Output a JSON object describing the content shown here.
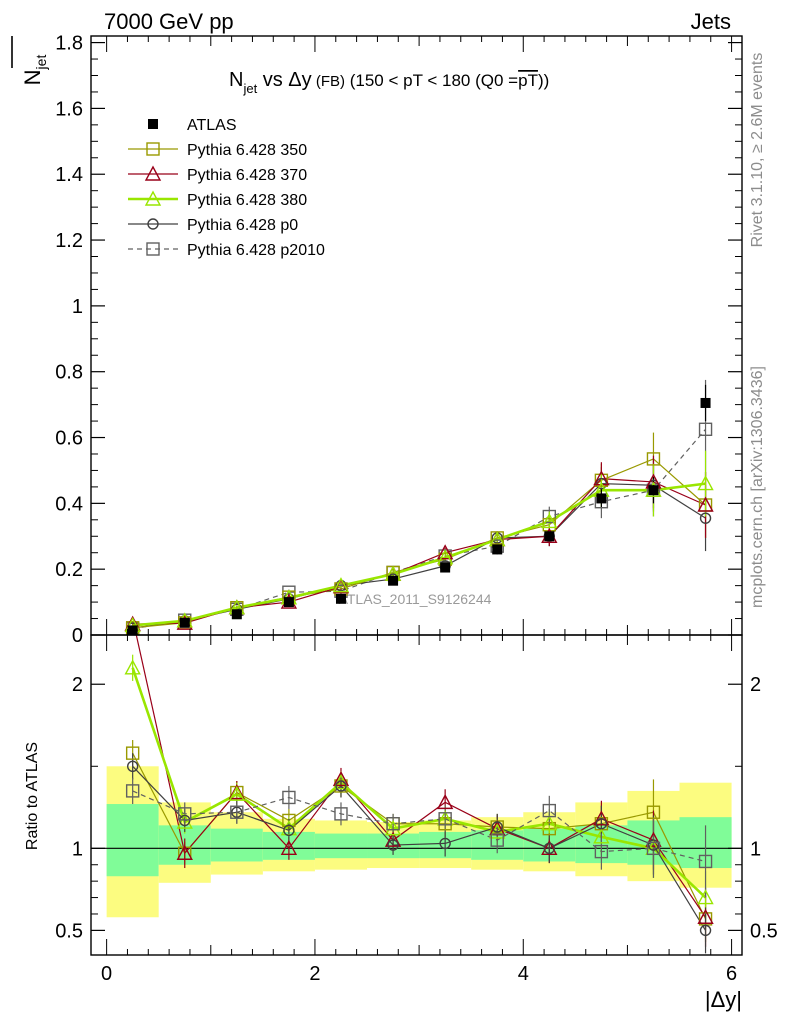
{
  "header": {
    "left": "7000 GeV pp",
    "right": "Jets",
    "side_top": "Rivet 3.1.10, ≥ 2.6M events",
    "side_bottom": "mcplots.cern.ch [arXiv:1306.3436]"
  },
  "plot": {
    "title_main": "N",
    "title_sub": "jet",
    "title_rest": " vs Δy",
    "title_fb": " (FB)",
    "title_tail": " (150 < pT < 180 (Q0 =",
    "title_pt": "pT",
    "title_close": "))",
    "ylabel_main": "N",
    "ylabel_sub": "jet",
    "watermark": "ATLAS_2011_S9126244",
    "ratio_ylabel": "Ratio to ATLAS",
    "xlabel": "|Δy|"
  },
  "colors": {
    "atlas": "#000000",
    "p350": "#999900",
    "p370": "#990019",
    "p380": "#99e600",
    "p0": "#404040",
    "p2010": "#606060",
    "band_yellow": "#fcfc80",
    "band_green": "#80fc98"
  },
  "chart_data": {
    "type": "scatter",
    "x": [
      0.25,
      0.75,
      1.25,
      1.75,
      2.25,
      2.75,
      3.25,
      3.75,
      4.25,
      4.75,
      5.25,
      5.75
    ],
    "xlim": [
      -0.15,
      6.1
    ],
    "xticks": [
      "0",
      "2",
      "4",
      "6"
    ],
    "main_ylim": [
      0,
      1.82
    ],
    "main_yticks": [
      "0",
      "0.2",
      "0.4",
      "0.6",
      "0.8",
      "1",
      "1.2",
      "1.4",
      "1.6",
      "1.8"
    ],
    "ratio_ylim": [
      0.35,
      2.3
    ],
    "ratio_yticks": [
      "0.5",
      "1",
      "2"
    ],
    "series": [
      {
        "name": "ATLAS",
        "key": "atlas",
        "marker": "filled-square",
        "line": "none",
        "values": [
          0.014,
          0.037,
          0.063,
          0.1,
          0.11,
          0.165,
          0.205,
          0.26,
          0.3,
          0.415,
          0.44,
          0.705
        ],
        "errors": [
          0.004,
          0.004,
          0.006,
          0.008,
          0.008,
          0.01,
          0.012,
          0.015,
          0.02,
          0.03,
          0.04,
          0.055
        ]
      },
      {
        "name": "Pythia 6.428 350",
        "key": "p350",
        "marker": "open-square",
        "line": "solid",
        "values": [
          0.022,
          0.037,
          0.083,
          0.115,
          0.14,
          0.19,
          0.23,
          0.295,
          0.335,
          0.47,
          0.535,
          0.395
        ],
        "errors": [
          0.003,
          0.003,
          0.006,
          0.008,
          0.009,
          0.012,
          0.015,
          0.02,
          0.03,
          0.05,
          0.08,
          0.1
        ]
      },
      {
        "name": "Pythia 6.428 370",
        "key": "p370",
        "marker": "open-triangle",
        "line": "solid",
        "values": [
          0.033,
          0.036,
          0.083,
          0.1,
          0.147,
          0.185,
          0.25,
          0.29,
          0.3,
          0.475,
          0.465,
          0.395
        ],
        "errors": [
          0.003,
          0.003,
          0.006,
          0.008,
          0.009,
          0.012,
          0.015,
          0.02,
          0.03,
          0.05,
          0.08,
          0.1
        ]
      },
      {
        "name": "Pythia 6.428 380",
        "key": "p380",
        "marker": "open-triangle",
        "line": "solid-thick",
        "values": [
          0.029,
          0.043,
          0.083,
          0.113,
          0.15,
          0.185,
          0.235,
          0.29,
          0.345,
          0.44,
          0.44,
          0.46
        ],
        "errors": [
          0.003,
          0.003,
          0.006,
          0.008,
          0.009,
          0.012,
          0.015,
          0.02,
          0.03,
          0.05,
          0.08,
          0.1
        ]
      },
      {
        "name": "Pythia 6.428 p0",
        "key": "p0",
        "marker": "open-circle",
        "line": "solid",
        "values": [
          0.021,
          0.043,
          0.078,
          0.11,
          0.15,
          0.17,
          0.21,
          0.295,
          0.3,
          0.46,
          0.455,
          0.355
        ],
        "errors": [
          0.003,
          0.003,
          0.006,
          0.008,
          0.009,
          0.012,
          0.015,
          0.02,
          0.03,
          0.05,
          0.08,
          0.1
        ]
      },
      {
        "name": "Pythia 6.428 p2010",
        "key": "p2010",
        "marker": "open-square",
        "line": "dashed",
        "values": [
          0.019,
          0.045,
          0.078,
          0.13,
          0.133,
          0.19,
          0.24,
          0.27,
          0.36,
          0.405,
          0.44,
          0.625
        ],
        "errors": [
          0.003,
          0.003,
          0.006,
          0.008,
          0.009,
          0.012,
          0.015,
          0.02,
          0.03,
          0.05,
          0.08,
          0.15
        ]
      }
    ],
    "ratio_series": [
      {
        "key": "p350",
        "values": [
          1.58,
          0.97,
          1.34,
          1.17,
          1.38,
          1.15,
          1.15,
          1.13,
          1.12,
          1.15,
          1.22,
          0.57
        ],
        "errors": [
          0.08,
          0.07,
          0.07,
          0.07,
          0.07,
          0.06,
          0.08,
          0.08,
          0.09,
          0.11,
          0.2,
          0.14
        ]
      },
      {
        "key": "p370",
        "values": [
          2.4,
          0.97,
          1.34,
          1.0,
          1.42,
          1.05,
          1.28,
          1.12,
          1.0,
          1.18,
          1.05,
          0.58
        ],
        "errors": [
          0.08,
          0.09,
          0.07,
          0.07,
          0.07,
          0.06,
          0.08,
          0.08,
          0.09,
          0.11,
          0.18,
          0.18
        ]
      },
      {
        "key": "p380",
        "values": [
          2.1,
          1.16,
          1.33,
          1.12,
          1.4,
          1.12,
          1.18,
          1.1,
          1.15,
          1.07,
          1.0,
          0.7
        ],
        "errors": [
          0.08,
          0.07,
          0.07,
          0.07,
          0.07,
          0.06,
          0.08,
          0.08,
          0.09,
          0.11,
          0.18,
          0.16
        ]
      },
      {
        "key": "p0",
        "values": [
          1.5,
          1.17,
          1.22,
          1.11,
          1.38,
          1.02,
          1.03,
          1.13,
          1.0,
          1.15,
          1.02,
          0.5
        ],
        "errors": [
          0.08,
          0.07,
          0.07,
          0.07,
          0.07,
          0.06,
          0.08,
          0.08,
          0.09,
          0.11,
          0.18,
          0.14
        ]
      },
      {
        "key": "p2010",
        "values": [
          1.35,
          1.21,
          1.22,
          1.31,
          1.21,
          1.15,
          1.18,
          1.05,
          1.23,
          0.98,
          1.0,
          0.92
        ],
        "errors": [
          0.08,
          0.07,
          0.07,
          0.07,
          0.07,
          0.06,
          0.08,
          0.08,
          0.09,
          0.11,
          0.18,
          0.22
        ]
      }
    ],
    "bands": {
      "x_edges": [
        0,
        0.5,
        1.0,
        1.5,
        2.0,
        2.5,
        3.0,
        3.5,
        4.0,
        4.5,
        5.0,
        5.5,
        6.0
      ],
      "yellow_lo": [
        0.58,
        0.79,
        0.84,
        0.86,
        0.87,
        0.88,
        0.88,
        0.87,
        0.86,
        0.83,
        0.8,
        0.76
      ],
      "yellow_hi": [
        1.5,
        1.28,
        1.22,
        1.18,
        1.17,
        1.16,
        1.17,
        1.19,
        1.22,
        1.28,
        1.35,
        1.4
      ],
      "green_lo": [
        0.83,
        0.9,
        0.92,
        0.93,
        0.94,
        0.94,
        0.94,
        0.93,
        0.92,
        0.91,
        0.9,
        0.88
      ],
      "green_hi": [
        1.27,
        1.14,
        1.12,
        1.1,
        1.09,
        1.09,
        1.1,
        1.11,
        1.12,
        1.14,
        1.17,
        1.19
      ]
    },
    "legend_position": "top-left"
  }
}
